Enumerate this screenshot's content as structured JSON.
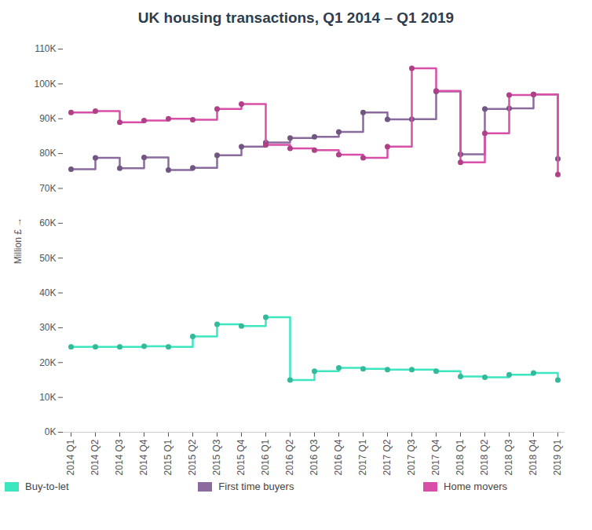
{
  "chart_data": {
    "type": "line",
    "title": "UK housing transactions,  Q1 2014 – Q1 2019",
    "y_label": "Million £",
    "categories": [
      "2014 Q1",
      "2014 Q2",
      "2014 Q3",
      "2014 Q4",
      "2015 Q1",
      "2015 Q2",
      "2015 Q3",
      "2015 Q4",
      "2016 Q1",
      "2016 Q2",
      "2016 Q3",
      "2016 Q4",
      "2017 Q1",
      "2017 Q2",
      "2017 Q3",
      "2017 Q4",
      "2018 Q1",
      "2018 Q2",
      "2018 Q3",
      "2018 Q4",
      "2019 Q1"
    ],
    "series": [
      {
        "name": "Buy-to-let",
        "color": "#3ee6c0",
        "values": [
          24500,
          24500,
          24500,
          24700,
          24500,
          27500,
          31000,
          30500,
          33000,
          15000,
          17500,
          18500,
          18200,
          18000,
          18000,
          17500,
          16000,
          15800,
          16500,
          17000,
          15000
        ]
      },
      {
        "name": "First time buyers",
        "color": "#8b6b9e",
        "values": [
          75500,
          78800,
          75800,
          78900,
          75300,
          75900,
          79500,
          82000,
          83200,
          84500,
          84800,
          86200,
          91800,
          89800,
          89900,
          97800,
          79800,
          92800,
          93000,
          97000,
          78500
        ]
      },
      {
        "name": "Home movers",
        "color": "#d94fa7",
        "values": [
          91800,
          92200,
          89000,
          89500,
          90000,
          89700,
          92800,
          94200,
          82500,
          81500,
          81000,
          79700,
          78800,
          82000,
          104500,
          98000,
          77500,
          85800,
          96800,
          97000,
          74000
        ]
      }
    ],
    "ylim": [
      0,
      110000
    ],
    "yticks": [
      {
        "value": 0,
        "label": "0K"
      },
      {
        "value": 10000,
        "label": "10K"
      },
      {
        "value": 20000,
        "label": "20K"
      },
      {
        "value": 30000,
        "label": "30K"
      },
      {
        "value": 40000,
        "label": "40K"
      },
      {
        "value": 50000,
        "label": "50K"
      },
      {
        "value": 60000,
        "label": "60K"
      },
      {
        "value": 70000,
        "label": "70K"
      },
      {
        "value": 80000,
        "label": "80K"
      },
      {
        "value": 90000,
        "label": "90K"
      },
      {
        "value": 100000,
        "label": "100K"
      },
      {
        "value": 110000,
        "label": "110K"
      }
    ],
    "marker": "circle",
    "line_style": "step",
    "grid": false,
    "legend": "bottom"
  }
}
